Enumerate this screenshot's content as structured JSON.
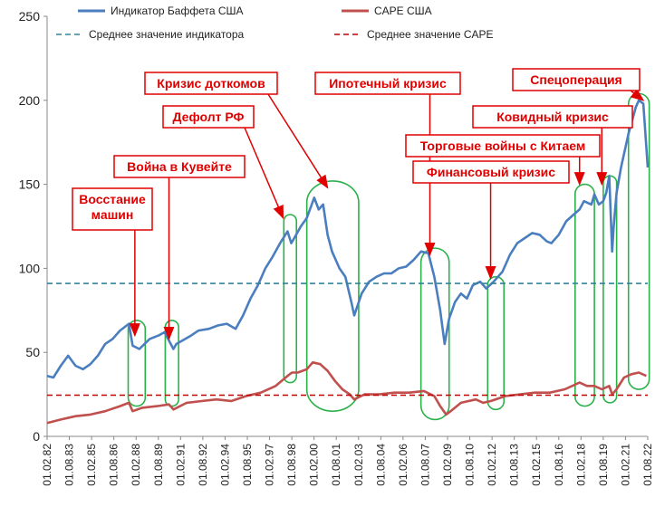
{
  "chart_data": {
    "type": "line",
    "title": "",
    "xlabel": "",
    "ylabel": "",
    "ylim": [
      0,
      250
    ],
    "y_ticks": [
      0,
      50,
      100,
      150,
      200,
      250
    ],
    "x_ticks": [
      "01.02.82",
      "01.08.83",
      "01.02.85",
      "01.08.86",
      "01.02.88",
      "01.08.89",
      "01.02.91",
      "01.08.92",
      "01.02.94",
      "01.08.95",
      "01.02.97",
      "01.08.98",
      "01.02.00",
      "01.08.01",
      "01.02.03",
      "01.08.04",
      "01.02.06",
      "01.08.07",
      "01.02.09",
      "01.08.10",
      "01.02.12",
      "01.08.13",
      "01.02.15",
      "01.08.16",
      "01.02.18",
      "01.08.19",
      "01.02.21",
      "01.08.22"
    ],
    "grid": false,
    "legend_position": "top",
    "series": [
      {
        "name": "Индикатор Баффета США",
        "color": "#4a7ebf",
        "style": "solid",
        "x": [
          1982.08,
          1982.5,
          1983.0,
          1983.5,
          1984.0,
          1984.5,
          1985.0,
          1985.5,
          1986.0,
          1986.5,
          1987.0,
          1987.6,
          1987.85,
          1988.3,
          1989.0,
          1989.6,
          1990.0,
          1990.6,
          1990.8,
          1991.2,
          1991.8,
          1992.3,
          1993.0,
          1993.6,
          1994.2,
          1994.8,
          1995.3,
          1995.8,
          1996.3,
          1996.8,
          1997.3,
          1997.8,
          1998.3,
          1998.55,
          1998.75,
          1999.2,
          1999.6,
          2000.1,
          2000.4,
          2000.7,
          2001.0,
          2001.3,
          2001.8,
          2002.2,
          2002.6,
          2002.8,
          2003.3,
          2003.8,
          2004.3,
          2004.8,
          2005.3,
          2005.8,
          2006.3,
          2006.8,
          2007.3,
          2007.8,
          2008.2,
          2008.6,
          2008.9,
          2009.2,
          2009.6,
          2010.0,
          2010.4,
          2010.8,
          2011.3,
          2011.7,
          2012.2,
          2012.8,
          2013.3,
          2013.8,
          2014.3,
          2014.8,
          2015.3,
          2015.8,
          2016.1,
          2016.6,
          2017.1,
          2017.6,
          2018.0,
          2018.3,
          2018.8,
          2019.0,
          2019.3,
          2019.6,
          2019.8,
          2020.0,
          2020.2,
          2020.3,
          2020.5,
          2020.8,
          2021.3,
          2021.8,
          2022.0,
          2022.3,
          2022.6
        ],
        "y": [
          36,
          35,
          42,
          48,
          42,
          40,
          43,
          48,
          55,
          58,
          63,
          67,
          54,
          52,
          58,
          60,
          62,
          52,
          55,
          57,
          60,
          63,
          64,
          66,
          67,
          64,
          72,
          82,
          90,
          100,
          107,
          115,
          122,
          115,
          118,
          125,
          130,
          142,
          135,
          138,
          120,
          110,
          100,
          95,
          80,
          72,
          85,
          92,
          95,
          97,
          97,
          100,
          101,
          105,
          110,
          109,
          95,
          75,
          55,
          70,
          80,
          85,
          82,
          90,
          92,
          88,
          92,
          98,
          108,
          115,
          118,
          121,
          120,
          116,
          115,
          120,
          128,
          132,
          135,
          140,
          138,
          144,
          138,
          140,
          145,
          155,
          110,
          125,
          145,
          160,
          180,
          196,
          200,
          198,
          160
        ]
      },
      {
        "name": "CAPE США",
        "color": "#c0504d",
        "style": "solid",
        "x": [
          1982.08,
          1983.0,
          1984.0,
          1985.0,
          1986.0,
          1987.0,
          1987.6,
          1987.85,
          1988.5,
          1989.5,
          1990.3,
          1990.6,
          1991.5,
          1992.5,
          1993.5,
          1994.5,
          1995.5,
          1996.5,
          1997.5,
          1998.3,
          1998.6,
          1999.0,
          1999.6,
          2000.0,
          2000.5,
          2001.0,
          2001.5,
          2002.0,
          2002.5,
          2002.8,
          2003.5,
          2004.5,
          2005.5,
          2006.5,
          2007.5,
          2008.2,
          2008.6,
          2009.0,
          2009.3,
          2010.0,
          2011.0,
          2011.5,
          2012.0,
          2013.0,
          2014.0,
          2015.0,
          2016.0,
          2017.0,
          2018.0,
          2018.5,
          2019.0,
          2019.5,
          2020.0,
          2020.2,
          2020.5,
          2021.0,
          2021.5,
          2022.0,
          2022.5
        ],
        "y": [
          8,
          10,
          12,
          13,
          15,
          18,
          20,
          15,
          17,
          18,
          19,
          16,
          20,
          21,
          22,
          21,
          24,
          26,
          30,
          36,
          38,
          38,
          40,
          44,
          43,
          39,
          33,
          28,
          25,
          22,
          25,
          25,
          26,
          26,
          27,
          24,
          18,
          13,
          15,
          20,
          22,
          20,
          21,
          24,
          25,
          26,
          26,
          28,
          32,
          30,
          30,
          28,
          30,
          25,
          28,
          35,
          37,
          38,
          36
        ]
      },
      {
        "name": "Среднее значение индикатора",
        "color": "#31849b",
        "style": "dashed",
        "x": [
          1982.08,
          2022.6
        ],
        "y": [
          91,
          91
        ]
      },
      {
        "name": "Среднее значение CAPE",
        "color": "#c00000",
        "style": "dashed",
        "x": [
          1982.08,
          2022.6
        ],
        "y": [
          24.5,
          24.5
        ]
      }
    ],
    "annotations": [
      {
        "text": "Восстание\nмашин",
        "target_x": 1988.0,
        "target_y": 60
      },
      {
        "text": "Война в Кувейте",
        "target_x": 1990.3,
        "target_y": 58
      },
      {
        "text": "Дефолт РФ",
        "target_x": 1998.0,
        "target_y": 130
      },
      {
        "text": "Кризис доткомов",
        "target_x": 2001.0,
        "target_y": 148
      },
      {
        "text": "Ипотечный кризис",
        "target_x": 2007.9,
        "target_y": 108
      },
      {
        "text": "Торговые войны с Китаем",
        "target_x": 2018.0,
        "target_y": 150
      },
      {
        "text": "Финансовый кризис",
        "target_x": 2012.0,
        "target_y": 94
      },
      {
        "text": "Ковидный кризис",
        "target_x": 2019.5,
        "target_y": 150
      },
      {
        "text": "Спецоперация",
        "target_x": 2022.3,
        "target_y": 200
      }
    ]
  }
}
